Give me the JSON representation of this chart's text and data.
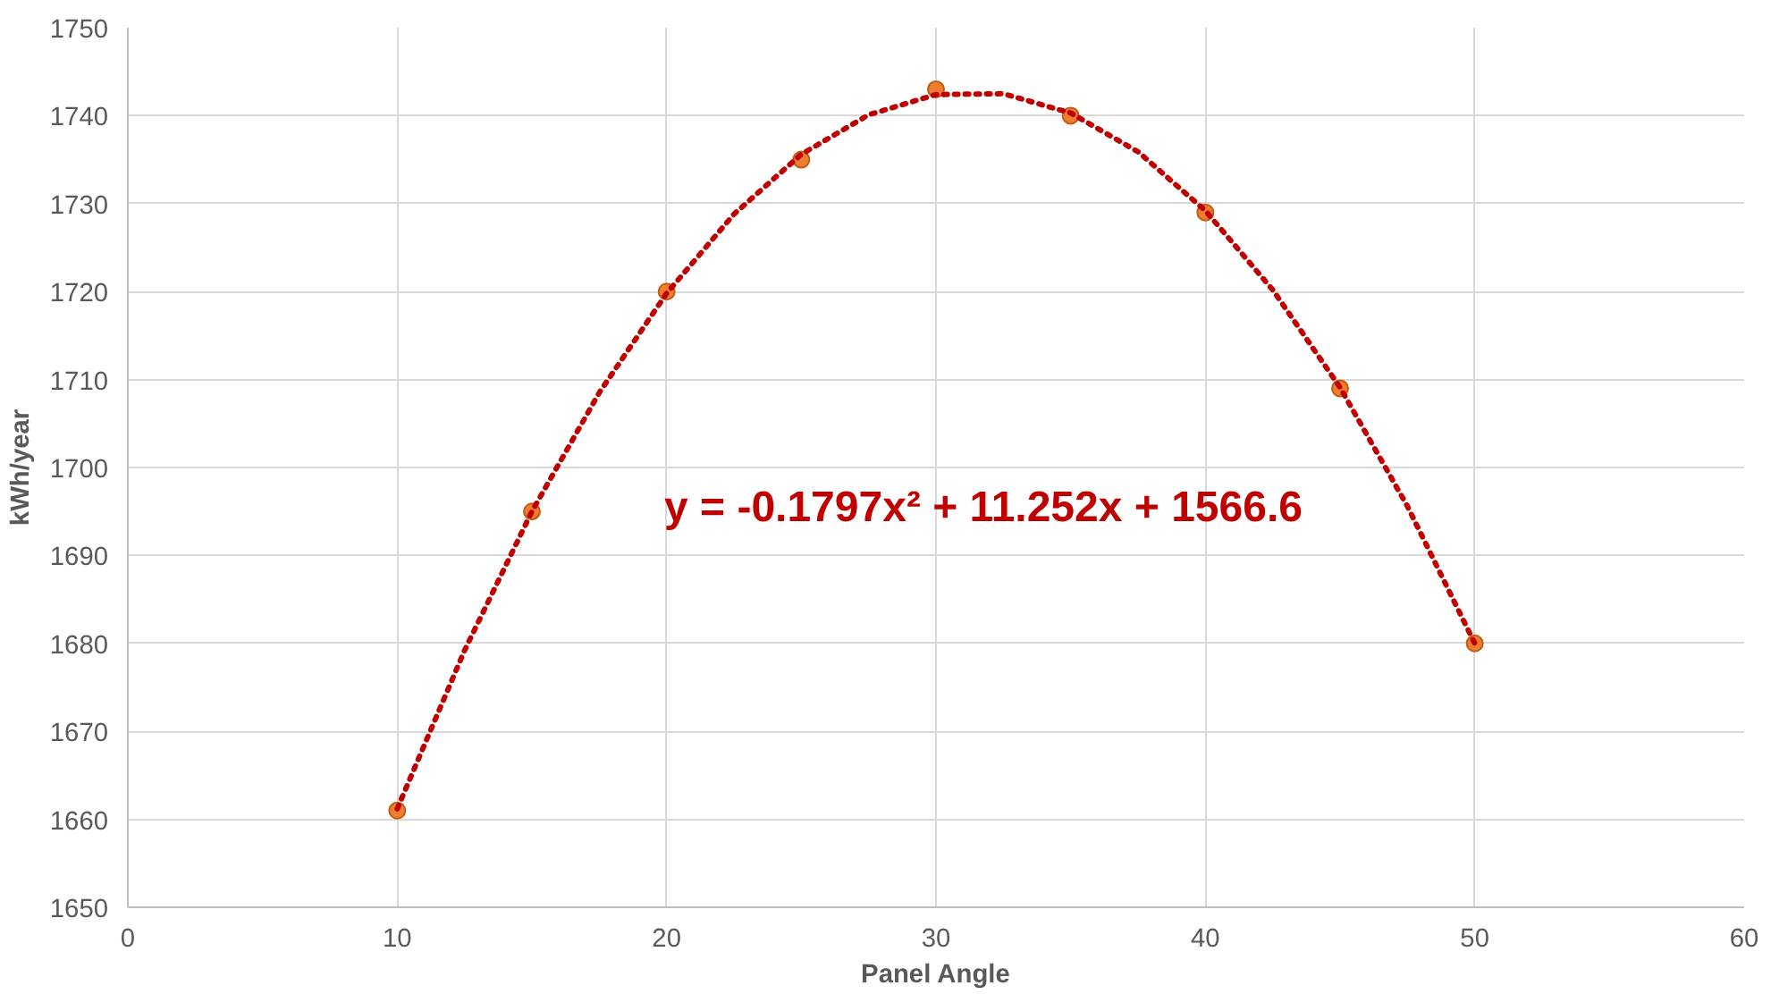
{
  "chart_data": {
    "type": "scatter",
    "xlabel": "Panel Angle",
    "ylabel": "kWh/year",
    "xlim": [
      0,
      60
    ],
    "xticks": [
      0,
      10,
      20,
      30,
      40,
      50,
      60
    ],
    "ylim": [
      1650,
      1750
    ],
    "yticks": [
      1650,
      1660,
      1670,
      1680,
      1690,
      1700,
      1710,
      1720,
      1730,
      1740,
      1750
    ],
    "grid": true,
    "marker": "circle",
    "annotations": [
      "y = -0.1797x² + 11.252x + 1566.6"
    ],
    "series": [
      {
        "color": "#ed7d31",
        "x": [
          10,
          15,
          20,
          25,
          30,
          35,
          40,
          45,
          50
        ],
        "values": [
          1661,
          1695,
          1720,
          1735,
          1743,
          1740,
          1729,
          1709,
          1680
        ]
      },
      {
        "type": "line",
        "color": "#c00000",
        "line_style": "dotted",
        "marker": "none",
        "x": [
          10,
          12.5,
          15,
          17.5,
          20,
          22.5,
          25,
          27.5,
          30,
          32.5,
          35,
          37.5,
          40,
          42.5,
          45,
          47.5,
          50
        ],
        "values": [
          1661.2,
          1679.2,
          1695.0,
          1708.5,
          1719.8,
          1728.8,
          1735.6,
          1740.1,
          1742.4,
          1742.5,
          1740.3,
          1735.9,
          1729.2,
          1720.2,
          1709.1,
          1695.6,
          1680.0
        ]
      }
    ]
  }
}
